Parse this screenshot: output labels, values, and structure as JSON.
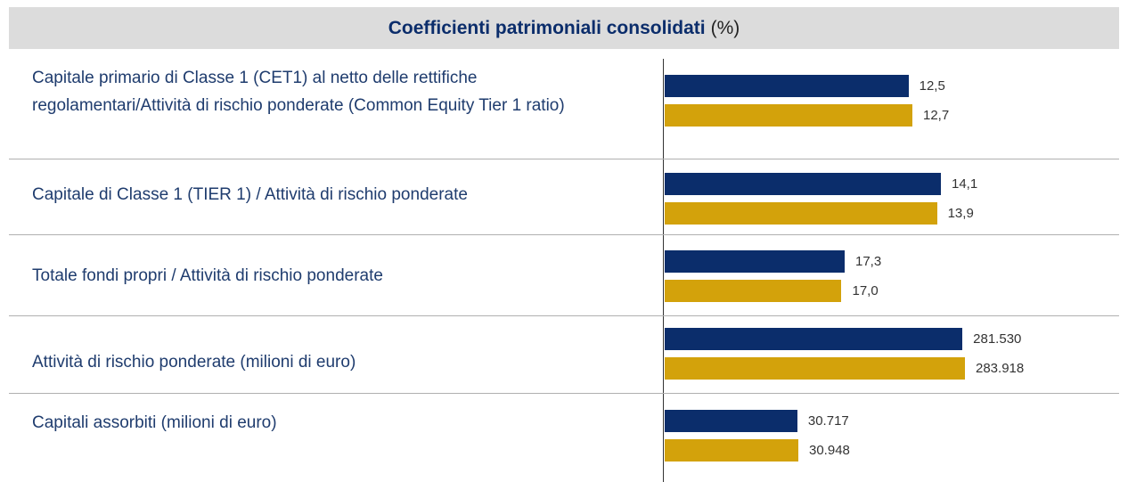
{
  "chart_data": {
    "type": "bar",
    "title": "Coefficienti patrimoniali consolidati",
    "title_unit": "(%)",
    "categories": [
      "Capitale primario di Classe 1 (CET1) al netto delle rettifiche regolamentari/Attività di rischio ponderate (Common Equity Tier 1 ratio)",
      "Capitale di Classe 1 (TIER 1) / Attività di rischio ponderate",
      "Totale fondi propri / Attività di rischio ponderate",
      "Attività di rischio ponderate (milioni di euro)",
      "Capitali assorbiti (milioni di euro)"
    ],
    "series": [
      {
        "color": "#0b2d6b",
        "values": [
          12.5,
          14.1,
          17.3,
          281530,
          30717
        ],
        "value_labels": [
          "12,5",
          "14,1",
          "17,3",
          "281.530",
          "30.717"
        ]
      },
      {
        "color": "#d3a20b",
        "values": [
          12.7,
          13.9,
          17.0,
          283918,
          30948
        ],
        "value_labels": [
          "12,7",
          "13,9",
          "17,0",
          "283.918",
          "30.948"
        ]
      }
    ]
  }
}
